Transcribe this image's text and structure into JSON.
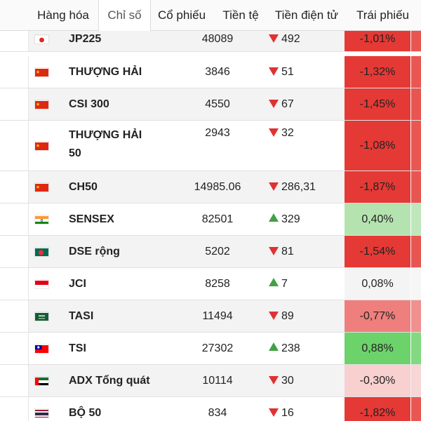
{
  "tabs": [
    {
      "label": "Hàng hóa",
      "active": false
    },
    {
      "label": "Chỉ số",
      "active": true
    },
    {
      "label": "Cổ phiếu",
      "active": false
    },
    {
      "label": "Tiền tệ",
      "active": false
    },
    {
      "label": "Tiền điện tử",
      "active": false
    },
    {
      "label": "Trái phiếu",
      "active": false
    }
  ],
  "rows": [
    {
      "flag": "japan-flag-icon",
      "name": [
        "JP225"
      ],
      "price": "48089",
      "direction": "down",
      "change": "492",
      "pct": "-1,01%",
      "pct_color": "#e53935"
    },
    {
      "flag": "china-flag-icon",
      "name": [
        "THƯỢNG HẢI"
      ],
      "price": "3846",
      "direction": "down",
      "change": "51",
      "pct": "-1,32%",
      "pct_color": "#e53935"
    },
    {
      "flag": "china-flag-icon",
      "name": [
        "CSI 300"
      ],
      "price": "4550",
      "direction": "down",
      "change": "67",
      "pct": "-1,45%",
      "pct_color": "#e53935"
    },
    {
      "flag": "china-flag-icon",
      "name": [
        "THƯỢNG HẢI",
        "50"
      ],
      "price": "2943",
      "direction": "down",
      "change": "32",
      "pct": "-1,08%",
      "pct_color": "#e53935"
    },
    {
      "flag": "china-flag-icon",
      "name": [
        "CH50"
      ],
      "price": "14985.06",
      "direction": "down",
      "change": "286,31",
      "pct": "-1,87%",
      "pct_color": "#e53935"
    },
    {
      "flag": "india-flag-icon",
      "name": [
        "SENSEX"
      ],
      "price": "82501",
      "direction": "up",
      "change": "329",
      "pct": "0,40%",
      "pct_color": "#b5e3b0"
    },
    {
      "flag": "bangladesh-flag-icon",
      "name": [
        "DSE rộng"
      ],
      "price": "5202",
      "direction": "down",
      "change": "81",
      "pct": "-1,54%",
      "pct_color": "#e53935"
    },
    {
      "flag": "indonesia-flag-icon",
      "name": [
        "JCI"
      ],
      "price": "8258",
      "direction": "up",
      "change": "7",
      "pct": "0,08%",
      "pct_color": "#f4f4f4"
    },
    {
      "flag": "saudi-arabia-flag-icon",
      "name": [
        "TASI"
      ],
      "price": "11494",
      "direction": "down",
      "change": "89",
      "pct": "-0,77%",
      "pct_color": "#ef7f7c"
    },
    {
      "flag": "taiwan-flag-icon",
      "name": [
        "TSI"
      ],
      "price": "27302",
      "direction": "up",
      "change": "238",
      "pct": "0,88%",
      "pct_color": "#6cd26a"
    },
    {
      "flag": "uae-flag-icon",
      "name": [
        "ADX Tổng quát"
      ],
      "price": "10114",
      "direction": "down",
      "change": "30",
      "pct": "-0,30%",
      "pct_color": "#f7d0cf"
    },
    {
      "flag": "thailand-flag-icon",
      "name": [
        "BỘ 50"
      ],
      "price": "834",
      "direction": "down",
      "change": "16",
      "pct": "-1,82%",
      "pct_color": "#e53935"
    }
  ]
}
